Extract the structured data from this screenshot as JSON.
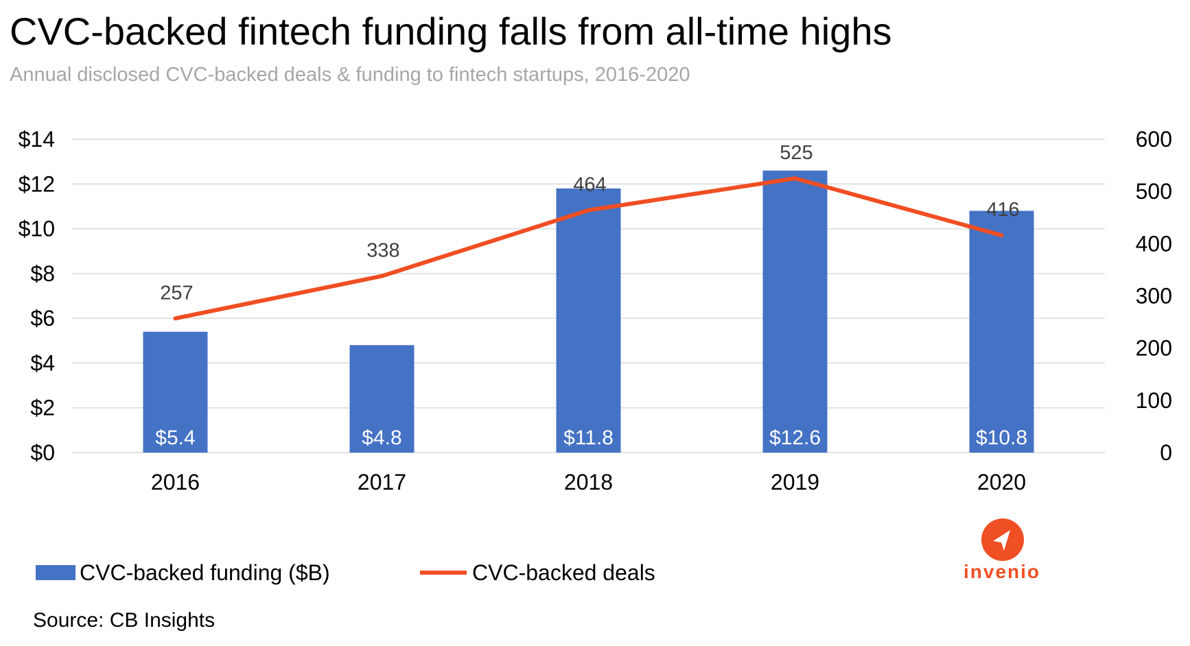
{
  "title": "CVC-backed fintech funding falls from all-time highs",
  "subtitle": "Annual disclosed CVC-backed deals & funding to fintech startups, 2016-2020",
  "legend": {
    "bar_label": "CVC-backed funding ($B)",
    "line_label": "CVC-backed deals"
  },
  "source": "Source:  CB Insights",
  "logo": {
    "text": "invenio",
    "icon": "paper-plane-icon"
  },
  "colors": {
    "bar": "#4472c4",
    "line": "#f04e23",
    "grid": "#d9d9d9",
    "subtitle": "#a6a6a6",
    "brand": "#f04e23"
  },
  "chart_data": {
    "type": "bar",
    "categories": [
      "2016",
      "2017",
      "2018",
      "2019",
      "2020"
    ],
    "series": [
      {
        "name": "CVC-backed funding ($B)",
        "type": "bar",
        "axis": "left",
        "values": [
          5.4,
          4.8,
          11.8,
          12.6,
          10.8
        ],
        "labels": [
          "$5.4",
          "$4.8",
          "$11.8",
          "$12.6",
          "$10.8"
        ]
      },
      {
        "name": "CVC-backed deals",
        "type": "line",
        "axis": "right",
        "values": [
          257,
          338,
          464,
          525,
          416
        ],
        "labels": [
          "257",
          "338",
          "464",
          "525",
          "416"
        ]
      }
    ],
    "y_left": {
      "ylim": [
        0,
        14
      ],
      "ticks": [
        0,
        2,
        4,
        6,
        8,
        10,
        12,
        14
      ],
      "tick_labels": [
        "$0",
        "$2",
        "$4",
        "$6",
        "$8",
        "$10",
        "$12",
        "$14"
      ]
    },
    "y_right": {
      "ylim": [
        0,
        600
      ],
      "ticks": [
        0,
        100,
        200,
        300,
        400,
        500,
        600
      ],
      "tick_labels": [
        "0",
        "100",
        "200",
        "300",
        "400",
        "500",
        "600"
      ]
    },
    "grid": true,
    "legend_position": "bottom-left"
  }
}
